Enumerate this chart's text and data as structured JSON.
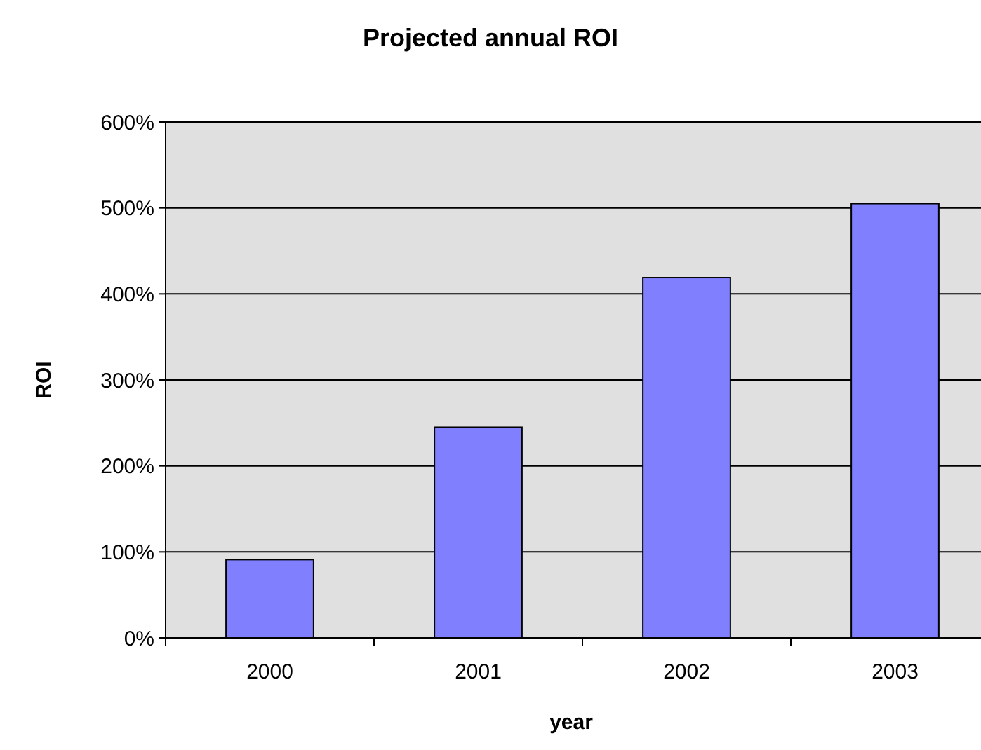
{
  "chart_data": {
    "type": "bar",
    "title": "Projected annual ROI",
    "xlabel": "year",
    "ylabel": "ROI",
    "categories": [
      "2000",
      "2001",
      "2002",
      "2003"
    ],
    "values": [
      91,
      245,
      419,
      505
    ],
    "color": "#8080ff",
    "ylim": [
      0,
      600
    ],
    "yticks": [
      {
        "value": 0,
        "label": "0%"
      },
      {
        "value": 100,
        "label": "100%"
      },
      {
        "value": 200,
        "label": "200%"
      },
      {
        "value": 300,
        "label": "300%"
      },
      {
        "value": 400,
        "label": "400%"
      },
      {
        "value": 500,
        "label": "500%"
      },
      {
        "value": 600,
        "label": "600%"
      }
    ],
    "grid": "y"
  }
}
